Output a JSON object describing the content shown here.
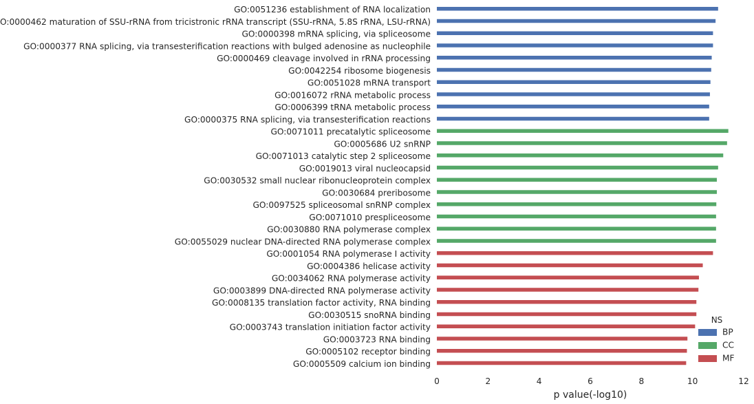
{
  "chart_data": {
    "type": "bar",
    "orientation": "horizontal",
    "xlabel": "p value(-log10)",
    "ylabel": "",
    "xlim": [
      0,
      12
    ],
    "xticks": [
      0,
      2,
      4,
      6,
      8,
      10,
      12
    ],
    "grid": false,
    "legend": {
      "title": "NS",
      "placement": "bottom-right",
      "entries": [
        {
          "label": "BP",
          "color": "#4c72b0"
        },
        {
          "label": "CC",
          "color": "#55a868"
        },
        {
          "label": "MF",
          "color": "#c44e52"
        }
      ]
    },
    "categories": [
      "GO:0051236 establishment of RNA localization",
      "GO:0000462 maturation of SSU-rRNA from tricistronic rRNA transcript (SSU-rRNA, 5.8S rRNA, LSU-rRNA)",
      "GO:0000398 mRNA splicing, via spliceosome",
      "GO:0000377 RNA splicing, via transesterification reactions with bulged adenosine as nucleophile",
      "GO:0000469 cleavage involved in rRNA processing",
      "GO:0042254 ribosome biogenesis",
      "GO:0051028 mRNA transport",
      "GO:0016072 rRNA metabolic process",
      "GO:0006399 tRNA metabolic process",
      "GO:0000375 RNA splicing, via transesterification reactions",
      "GO:0071011 precatalytic spliceosome",
      "GO:0005686 U2 snRNP",
      "GO:0071013 catalytic step 2 spliceosome",
      "GO:0019013 viral nucleocapsid",
      "GO:0030532 small nuclear ribonucleoprotein complex",
      "GO:0030684 preribosome",
      "GO:0097525 spliceosomal snRNP complex",
      "GO:0071010 prespliceosome",
      "GO:0030880 RNA polymerase complex",
      "GO:0055029 nuclear DNA-directed RNA polymerase complex",
      "GO:0001054 RNA polymerase I activity",
      "GO:0004386 helicase activity",
      "GO:0034062 RNA polymerase activity",
      "GO:0003899 DNA-directed RNA polymerase activity",
      "GO:0008135 translation factor activity, RNA binding",
      "GO:0030515 snoRNA binding",
      "GO:0003743 translation initiation factor activity",
      "GO:0003723 RNA binding",
      "GO:0005102 receptor binding",
      "GO:0005509 calcium ion binding"
    ],
    "values": [
      11.0,
      10.9,
      10.8,
      10.8,
      10.75,
      10.73,
      10.7,
      10.68,
      10.65,
      10.65,
      11.4,
      11.35,
      11.2,
      11.0,
      10.95,
      10.95,
      10.93,
      10.92,
      10.92,
      10.92,
      10.8,
      10.4,
      10.25,
      10.23,
      10.15,
      10.15,
      10.1,
      9.8,
      9.78,
      9.75
    ],
    "groups": [
      "BP",
      "BP",
      "BP",
      "BP",
      "BP",
      "BP",
      "BP",
      "BP",
      "BP",
      "BP",
      "CC",
      "CC",
      "CC",
      "CC",
      "CC",
      "CC",
      "CC",
      "CC",
      "CC",
      "CC",
      "MF",
      "MF",
      "MF",
      "MF",
      "MF",
      "MF",
      "MF",
      "MF",
      "MF",
      "MF"
    ]
  }
}
